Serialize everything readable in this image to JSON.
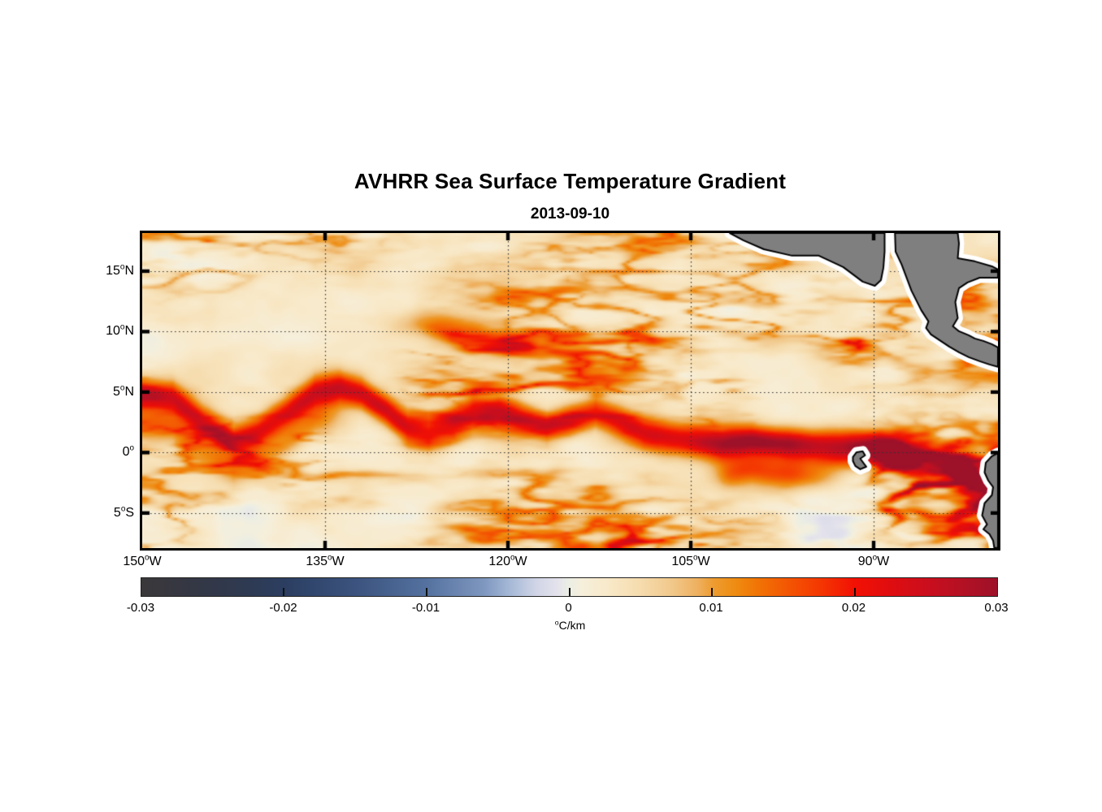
{
  "figure": {
    "title": "AVHRR Sea Surface Temperature Gradient",
    "subtitle": "2013-09-10"
  },
  "chart_data": {
    "type": "heatmap",
    "title": "AVHRR Sea Surface Temperature Gradient",
    "subtitle": "2013-09-10",
    "geo": {
      "lon_range": [
        -150,
        -79.8
      ],
      "lat_range": [
        -7.9,
        18.15
      ]
    },
    "x_axis": {
      "tick_lons": [
        -150,
        -135,
        -120,
        -105,
        -90
      ],
      "tick_labels": [
        "150°W",
        "135°W",
        "120°W",
        "105°W",
        "90°W"
      ]
    },
    "y_axis": {
      "tick_lats": [
        15,
        10,
        5,
        0,
        -5
      ],
      "tick_labels": [
        "15°N",
        "10°N",
        "5°N",
        "0°",
        "5°S"
      ]
    },
    "grid": {
      "style": "dotted",
      "color": "#333333"
    },
    "colorbar": {
      "min": -0.03,
      "max": 0.03,
      "tick_values": [
        -0.03,
        -0.02,
        -0.01,
        0,
        0.01,
        0.02,
        0.03
      ],
      "tick_labels": [
        "-0.03",
        "-0.02",
        "-0.01",
        "0",
        "0.01",
        "0.02",
        "0.03"
      ],
      "unit": "°C/km",
      "stops": [
        {
          "t": 0.0,
          "c": "#3a383a"
        },
        {
          "t": 0.06,
          "c": "#343744"
        },
        {
          "t": 0.125,
          "c": "#2e3a52"
        },
        {
          "t": 0.167,
          "c": "#2b3e61"
        },
        {
          "t": 0.25,
          "c": "#3b537e"
        },
        {
          "t": 0.333,
          "c": "#54719f"
        },
        {
          "t": 0.4,
          "c": "#7e97bf"
        },
        {
          "t": 0.43,
          "c": "#a5b8d6"
        },
        {
          "t": 0.46,
          "c": "#cfd4e6"
        },
        {
          "t": 0.485,
          "c": "#e3e2ec"
        },
        {
          "t": 0.5,
          "c": "#eceee4"
        },
        {
          "t": 0.515,
          "c": "#f6efdb"
        },
        {
          "t": 0.545,
          "c": "#f8e9c9"
        },
        {
          "t": 0.583,
          "c": "#f6dcae"
        },
        {
          "t": 0.62,
          "c": "#f1c88b"
        },
        {
          "t": 0.65,
          "c": "#eeb05e"
        },
        {
          "t": 0.667,
          "c": "#ed9d33"
        },
        {
          "t": 0.695,
          "c": "#ef8b10"
        },
        {
          "t": 0.72,
          "c": "#f17405"
        },
        {
          "t": 0.75,
          "c": "#f35a03"
        },
        {
          "t": 0.79,
          "c": "#f43a02"
        },
        {
          "t": 0.833,
          "c": "#f21104"
        },
        {
          "t": 0.87,
          "c": "#e20d0e"
        },
        {
          "t": 0.917,
          "c": "#cb0e1d"
        },
        {
          "t": 0.96,
          "c": "#b31124"
        },
        {
          "t": 1.0,
          "c": "#9d1129"
        }
      ]
    },
    "land": {
      "fill": "#7f7f7f",
      "outline": "#000000",
      "coast_halo": "#ffffff",
      "polygons": {
        "mexico": [
          [
            -101.8,
            18.15
          ],
          [
            -100.7,
            17.55
          ],
          [
            -99.0,
            16.81
          ],
          [
            -96.7,
            16.28
          ],
          [
            -94.5,
            16.28
          ],
          [
            -92.5,
            15.34
          ],
          [
            -90.9,
            14.13
          ],
          [
            -89.9,
            13.79
          ],
          [
            -89.4,
            14.26
          ],
          [
            -89.2,
            15.27
          ],
          [
            -89.1,
            16.61
          ],
          [
            -89.1,
            18.15
          ]
        ],
        "central_america": [
          [
            -88.25,
            18.15
          ],
          [
            -88.2,
            16.61
          ],
          [
            -87.7,
            15.54
          ],
          [
            -86.9,
            13.39
          ],
          [
            -86.1,
            11.78
          ],
          [
            -85.5,
            10.84
          ],
          [
            -85.7,
            10.3
          ],
          [
            -85.3,
            9.77
          ],
          [
            -84.7,
            9.36
          ],
          [
            -83.8,
            8.76
          ],
          [
            -83.0,
            8.29
          ],
          [
            -82.2,
            7.89
          ],
          [
            -81.3,
            7.55
          ],
          [
            -80.5,
            7.28
          ],
          [
            -79.8,
            7.08
          ],
          [
            -79.8,
            8.69
          ],
          [
            -80.3,
            8.96
          ],
          [
            -81.0,
            9.23
          ],
          [
            -81.7,
            9.43
          ],
          [
            -82.2,
            9.7
          ],
          [
            -83.0,
            10.03
          ],
          [
            -83.5,
            10.44
          ],
          [
            -83.1,
            11.11
          ],
          [
            -83.3,
            12.45
          ],
          [
            -83.0,
            13.59
          ],
          [
            -82.3,
            14.06
          ],
          [
            -81.3,
            14.46
          ],
          [
            -79.8,
            14.46
          ],
          [
            -79.8,
            15.13
          ],
          [
            -80.3,
            15.4
          ],
          [
            -81.7,
            15.81
          ],
          [
            -83.1,
            16.07
          ],
          [
            -83.0,
            17.28
          ],
          [
            -83.1,
            18.15
          ]
        ],
        "south_america": [
          [
            -79.8,
            -0.03
          ],
          [
            -80.3,
            -0.3
          ],
          [
            -80.8,
            -0.84
          ],
          [
            -80.9,
            -1.64
          ],
          [
            -80.6,
            -2.31
          ],
          [
            -80.2,
            -2.85
          ],
          [
            -80.3,
            -3.52
          ],
          [
            -80.9,
            -4.19
          ],
          [
            -81.1,
            -5.2
          ],
          [
            -80.7,
            -5.94
          ],
          [
            -81.0,
            -6.34
          ],
          [
            -80.5,
            -6.74
          ],
          [
            -80.2,
            -7.28
          ],
          [
            -80.1,
            -7.89
          ],
          [
            -79.8,
            -7.89
          ]
        ],
        "galapagos": [
          [
            -91.7,
            -0.37
          ],
          [
            -91.4,
            0.03
          ],
          [
            -90.9,
            0.1
          ],
          [
            -90.7,
            -0.23
          ],
          [
            -91.1,
            -0.5
          ],
          [
            -90.8,
            -0.91
          ],
          [
            -90.6,
            -1.17
          ],
          [
            -91.1,
            -1.38
          ],
          [
            -91.5,
            -1.11
          ],
          [
            -91.7,
            -0.7
          ]
        ]
      }
    },
    "field": {
      "seed": 11,
      "background_gradient": 0.0022,
      "equatorial_front_lat": [
        [
          -150,
          4.8
        ],
        [
          -147.5,
          4.5
        ],
        [
          -145,
          2.4
        ],
        [
          -142.5,
          0.95
        ],
        [
          -140.5,
          1.6
        ],
        [
          -138,
          3.3
        ],
        [
          -135.8,
          4.9
        ],
        [
          -133.8,
          5.3
        ],
        [
          -132,
          4.8
        ],
        [
          -130,
          3.5
        ],
        [
          -128.2,
          2.0
        ],
        [
          -126.5,
          1.6
        ],
        [
          -124.8,
          2.3
        ],
        [
          -122.8,
          3.4
        ],
        [
          -120.8,
          3.4
        ],
        [
          -118.8,
          2.7
        ],
        [
          -116.8,
          2.1
        ],
        [
          -114.8,
          2.6
        ],
        [
          -112.8,
          3.3
        ],
        [
          -110.8,
          2.5
        ],
        [
          -108.8,
          1.6
        ],
        [
          -106.8,
          1.2
        ],
        [
          -104.8,
          0.95
        ],
        [
          -102.4,
          0.7
        ],
        [
          -100,
          0.95
        ],
        [
          -97.6,
          0.75
        ],
        [
          -95.2,
          0.55
        ],
        [
          -92.8,
          0.4
        ],
        [
          -90.4,
          0.35
        ],
        [
          -88,
          0.15
        ],
        [
          -85.6,
          -0.4
        ],
        [
          -83.2,
          -1.2
        ],
        [
          -81.2,
          -2.4
        ],
        [
          -79.8,
          -3.4
        ]
      ],
      "equatorial_front_amp": [
        [
          -150,
          0.021
        ],
        [
          -145,
          0.019
        ],
        [
          -141,
          0.021
        ],
        [
          -136,
          0.023
        ],
        [
          -131,
          0.021
        ],
        [
          -127,
          0.019
        ],
        [
          -123,
          0.022
        ],
        [
          -118,
          0.018
        ],
        [
          -113,
          0.017
        ],
        [
          -108,
          0.021
        ],
        [
          -103,
          0.021
        ],
        [
          -98,
          0.024
        ],
        [
          -94,
          0.028
        ],
        [
          -90,
          0.032
        ],
        [
          -86,
          0.032
        ],
        [
          -82,
          0.031
        ],
        [
          -79.8,
          0.03
        ]
      ],
      "necc_front_lat": 9.8
    }
  }
}
